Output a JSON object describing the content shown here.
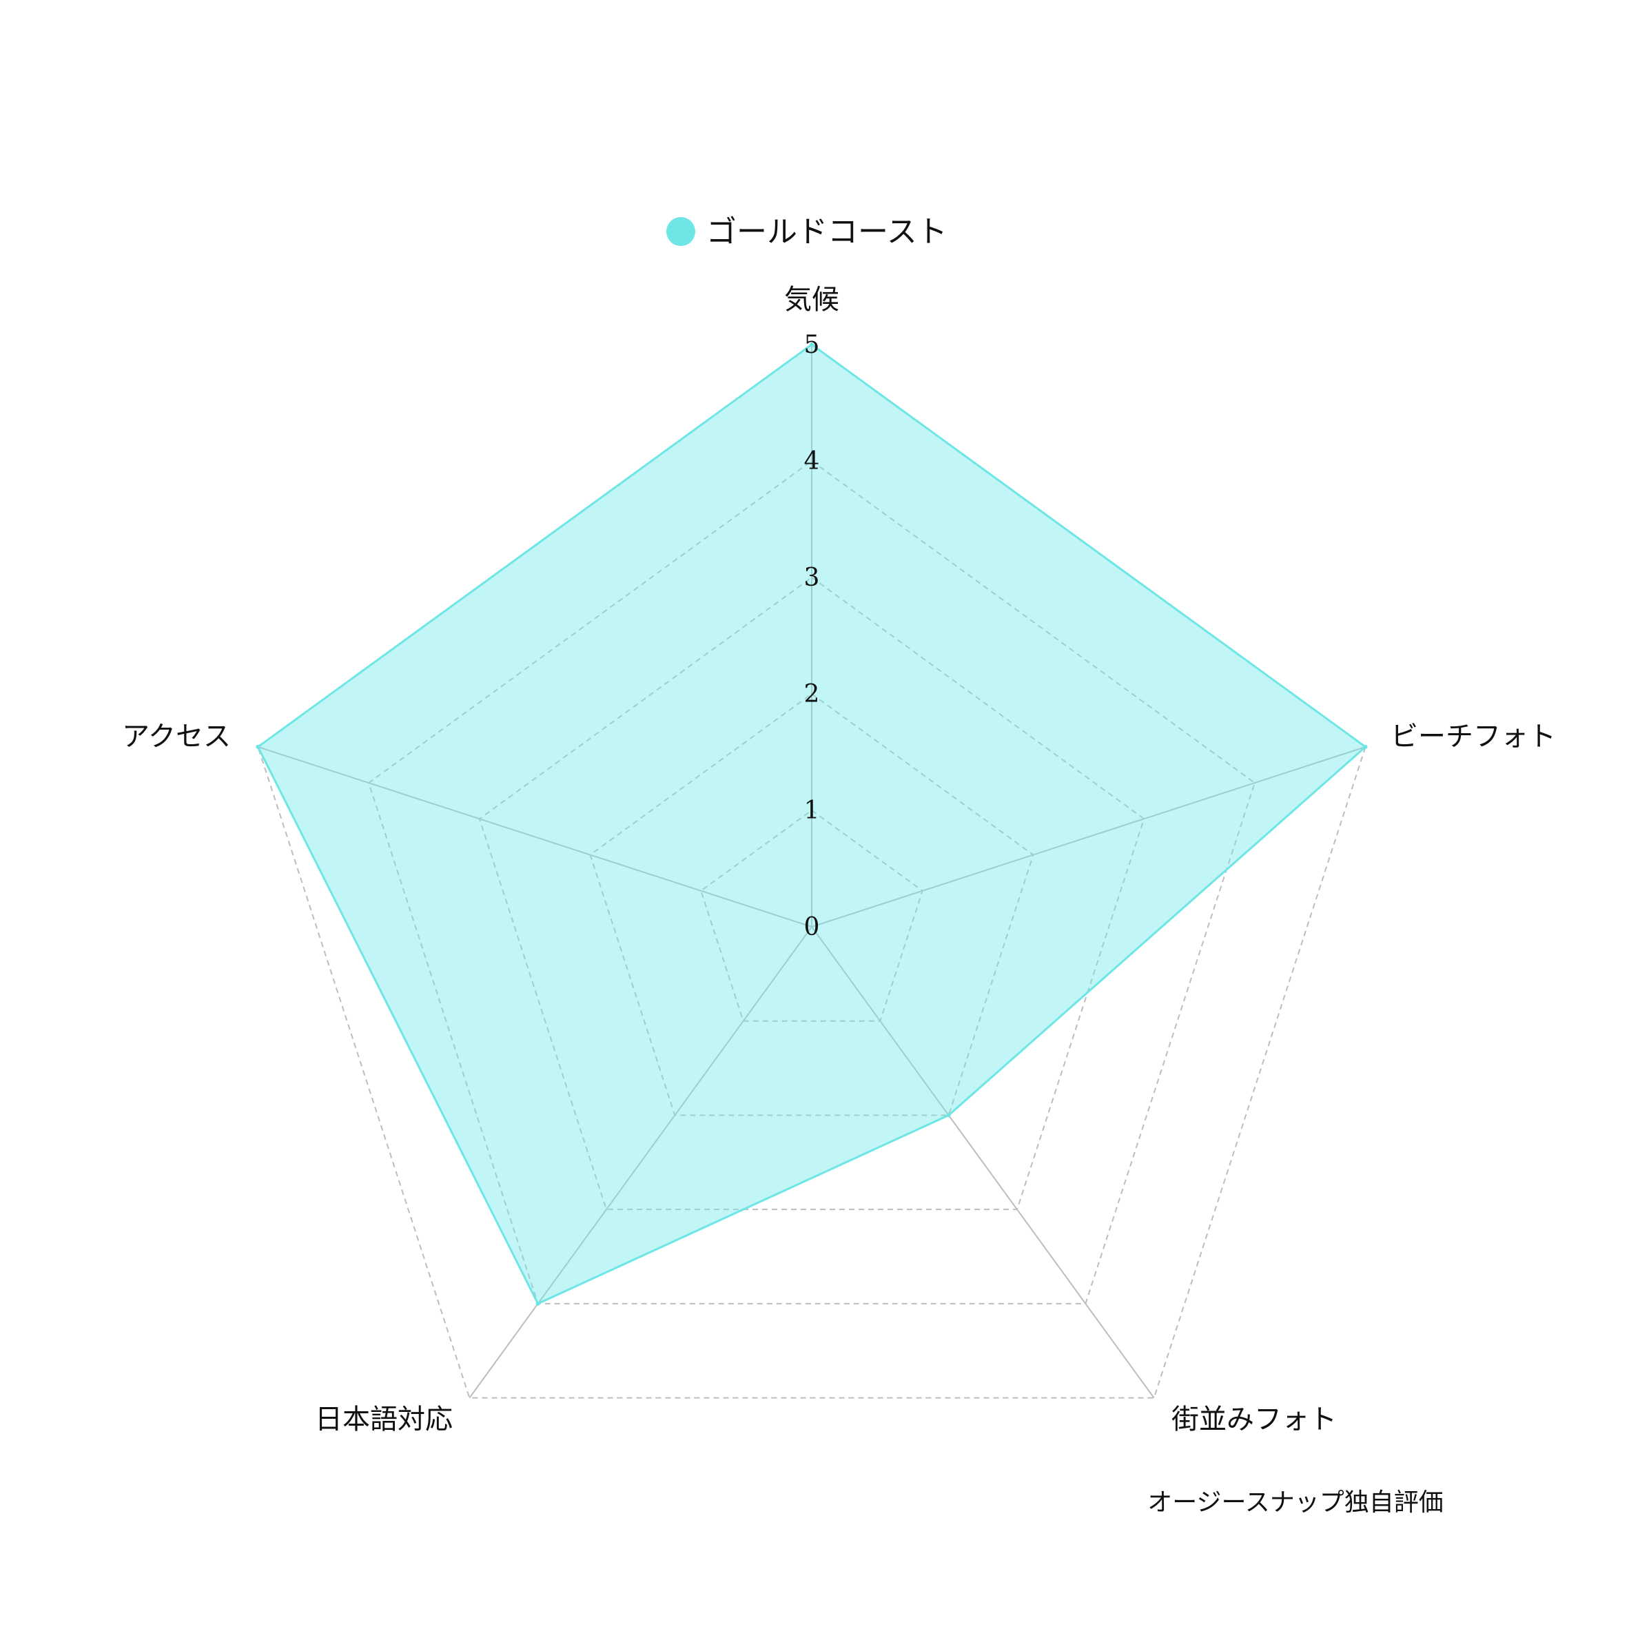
{
  "chart_data": {
    "type": "radar",
    "axes": [
      "気候",
      "ビーチフォト",
      "街並みフォト",
      "日本語対応",
      "アクセス"
    ],
    "series": [
      {
        "name": "ゴールドコースト",
        "values": [
          5,
          5,
          2,
          4,
          5
        ],
        "color": "#6ee6e6"
      }
    ],
    "radial_ticks": [
      "0",
      "1",
      "2",
      "3",
      "4",
      "5"
    ],
    "r_range": [
      0,
      5
    ],
    "grid": true,
    "legend_position": "top-center",
    "note": "オージースナップ独自評価"
  }
}
